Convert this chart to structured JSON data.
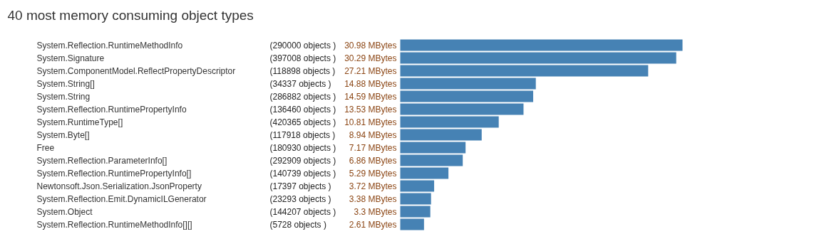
{
  "chart_data": {
    "type": "bar",
    "orientation": "horizontal",
    "title": "40 most memory consuming object types",
    "categories": [
      "System.Reflection.RuntimeMethodInfo",
      "System.Signature",
      "System.ComponentModel.ReflectPropertyDescriptor",
      "System.String[]",
      "System.String",
      "System.Reflection.RuntimePropertyInfo",
      "System.RuntimeType[]",
      "System.Byte[]",
      "Free",
      "System.Reflection.ParameterInfo[]",
      "System.Reflection.RuntimePropertyInfo[]",
      "Newtonsoft.Json.Serialization.JsonProperty",
      "System.Reflection.Emit.DynamicILGenerator",
      "System.Object",
      "System.Reflection.RuntimeMethodInfo[][]"
    ],
    "values": [
      30.98,
      30.29,
      27.21,
      14.88,
      14.59,
      13.53,
      10.81,
      8.94,
      7.17,
      6.86,
      5.29,
      3.72,
      3.38,
      3.3,
      2.61
    ],
    "value_labels": [
      "30.98 MBytes",
      "30.29 MBytes",
      "27.21 MBytes",
      "14.88 MBytes",
      "14.59 MBytes",
      "13.53 MBytes",
      "10.81 MBytes",
      "8.94 MBytes",
      "7.17 MBytes",
      "6.86 MBytes",
      "5.29 MBytes",
      "3.72 MBytes",
      "3.38 MBytes",
      "3.3 MBytes",
      "2.61 MBytes"
    ],
    "color": "#4682b4",
    "annotations": [
      "(290000 objects )",
      "(397008 objects )",
      "(118898 objects )",
      "(34337 objects )",
      "(286882 objects )",
      "(136460 objects )",
      "(420365 objects )",
      "(117918 objects )",
      "(180930 objects )",
      "(292909 objects )",
      "(140739 objects )",
      "(17397 objects )",
      "(23293 objects )",
      "(144207 objects )",
      "(5728 objects )"
    ]
  }
}
